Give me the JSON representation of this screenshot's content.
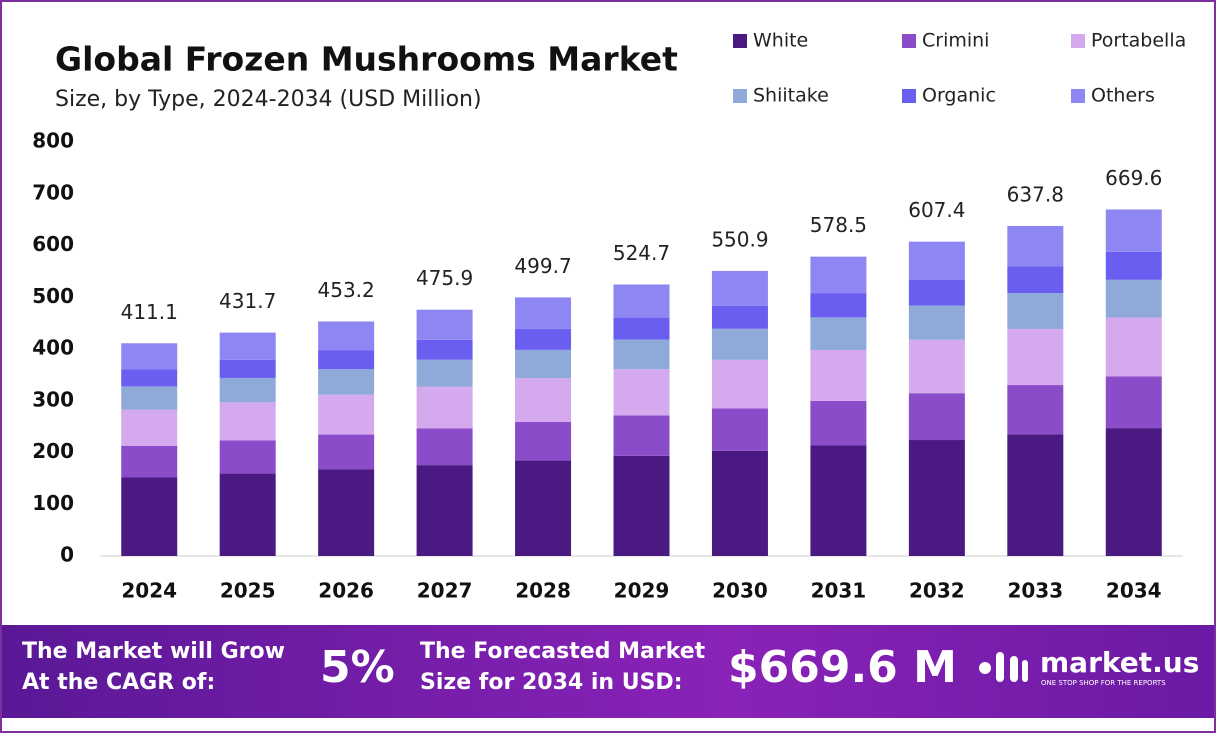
{
  "chart_data": {
    "type": "stacked-bar",
    "title": "Global Frozen Mushrooms Market",
    "subtitle": "Size, by Type, 2024-2034 (USD Million)",
    "categories": [
      "2024",
      "2025",
      "2026",
      "2027",
      "2028",
      "2029",
      "2030",
      "2031",
      "2032",
      "2033",
      "2034"
    ],
    "series": [
      {
        "name": "White",
        "color": "#4a1a82",
        "values": [
          151.7,
          159.3,
          167.2,
          175.6,
          184.4,
          193.6,
          203.3,
          213.5,
          224.1,
          235.3,
          247.1
        ]
      },
      {
        "name": "Crimini",
        "color": "#8b4cc9",
        "values": [
          61.3,
          64.3,
          67.5,
          70.9,
          74.5,
          78.2,
          82.1,
          86.2,
          90.5,
          95.0,
          99.8
        ]
      },
      {
        "name": "Portabella",
        "color": "#d4a9ee",
        "values": [
          69.9,
          73.4,
          77.0,
          80.9,
          84.9,
          89.2,
          93.7,
          98.3,
          103.3,
          108.4,
          113.8
        ]
      },
      {
        "name": "Shiitake",
        "color": "#8fa9d9",
        "values": [
          44.8,
          47.1,
          49.4,
          51.9,
          54.5,
          57.2,
          60.0,
          63.1,
          66.2,
          69.5,
          73.0
        ]
      },
      {
        "name": "Organic",
        "color": "#6a5ef0",
        "values": [
          33.3,
          35.0,
          36.7,
          38.5,
          40.5,
          42.5,
          44.6,
          46.9,
          49.2,
          51.7,
          54.2
        ]
      },
      {
        "name": "Others",
        "color": "#8e86f2",
        "values": [
          50.1,
          52.6,
          55.4,
          58.1,
          60.9,
          64.0,
          67.2,
          70.5,
          74.1,
          77.9,
          81.7
        ]
      }
    ],
    "totals": [
      411.1,
      431.7,
      453.2,
      475.9,
      499.7,
      524.7,
      550.9,
      578.5,
      607.4,
      637.8,
      669.6
    ],
    "ylim": [
      0,
      800
    ],
    "yticks": [
      0,
      100,
      200,
      300,
      400,
      500,
      600,
      700,
      800
    ],
    "grid": false,
    "legend": "top-right"
  },
  "footer": {
    "cagr_label": [
      "The Market will Grow",
      "At the CAGR of:"
    ],
    "cagr": "5%",
    "forecast_label": [
      "The Forecasted Market",
      "Size for 2034 in USD:"
    ],
    "forecast": "$669.6 M",
    "brand": "market.us",
    "tagline": "ONE STOP SHOP FOR THE REPORTS"
  }
}
